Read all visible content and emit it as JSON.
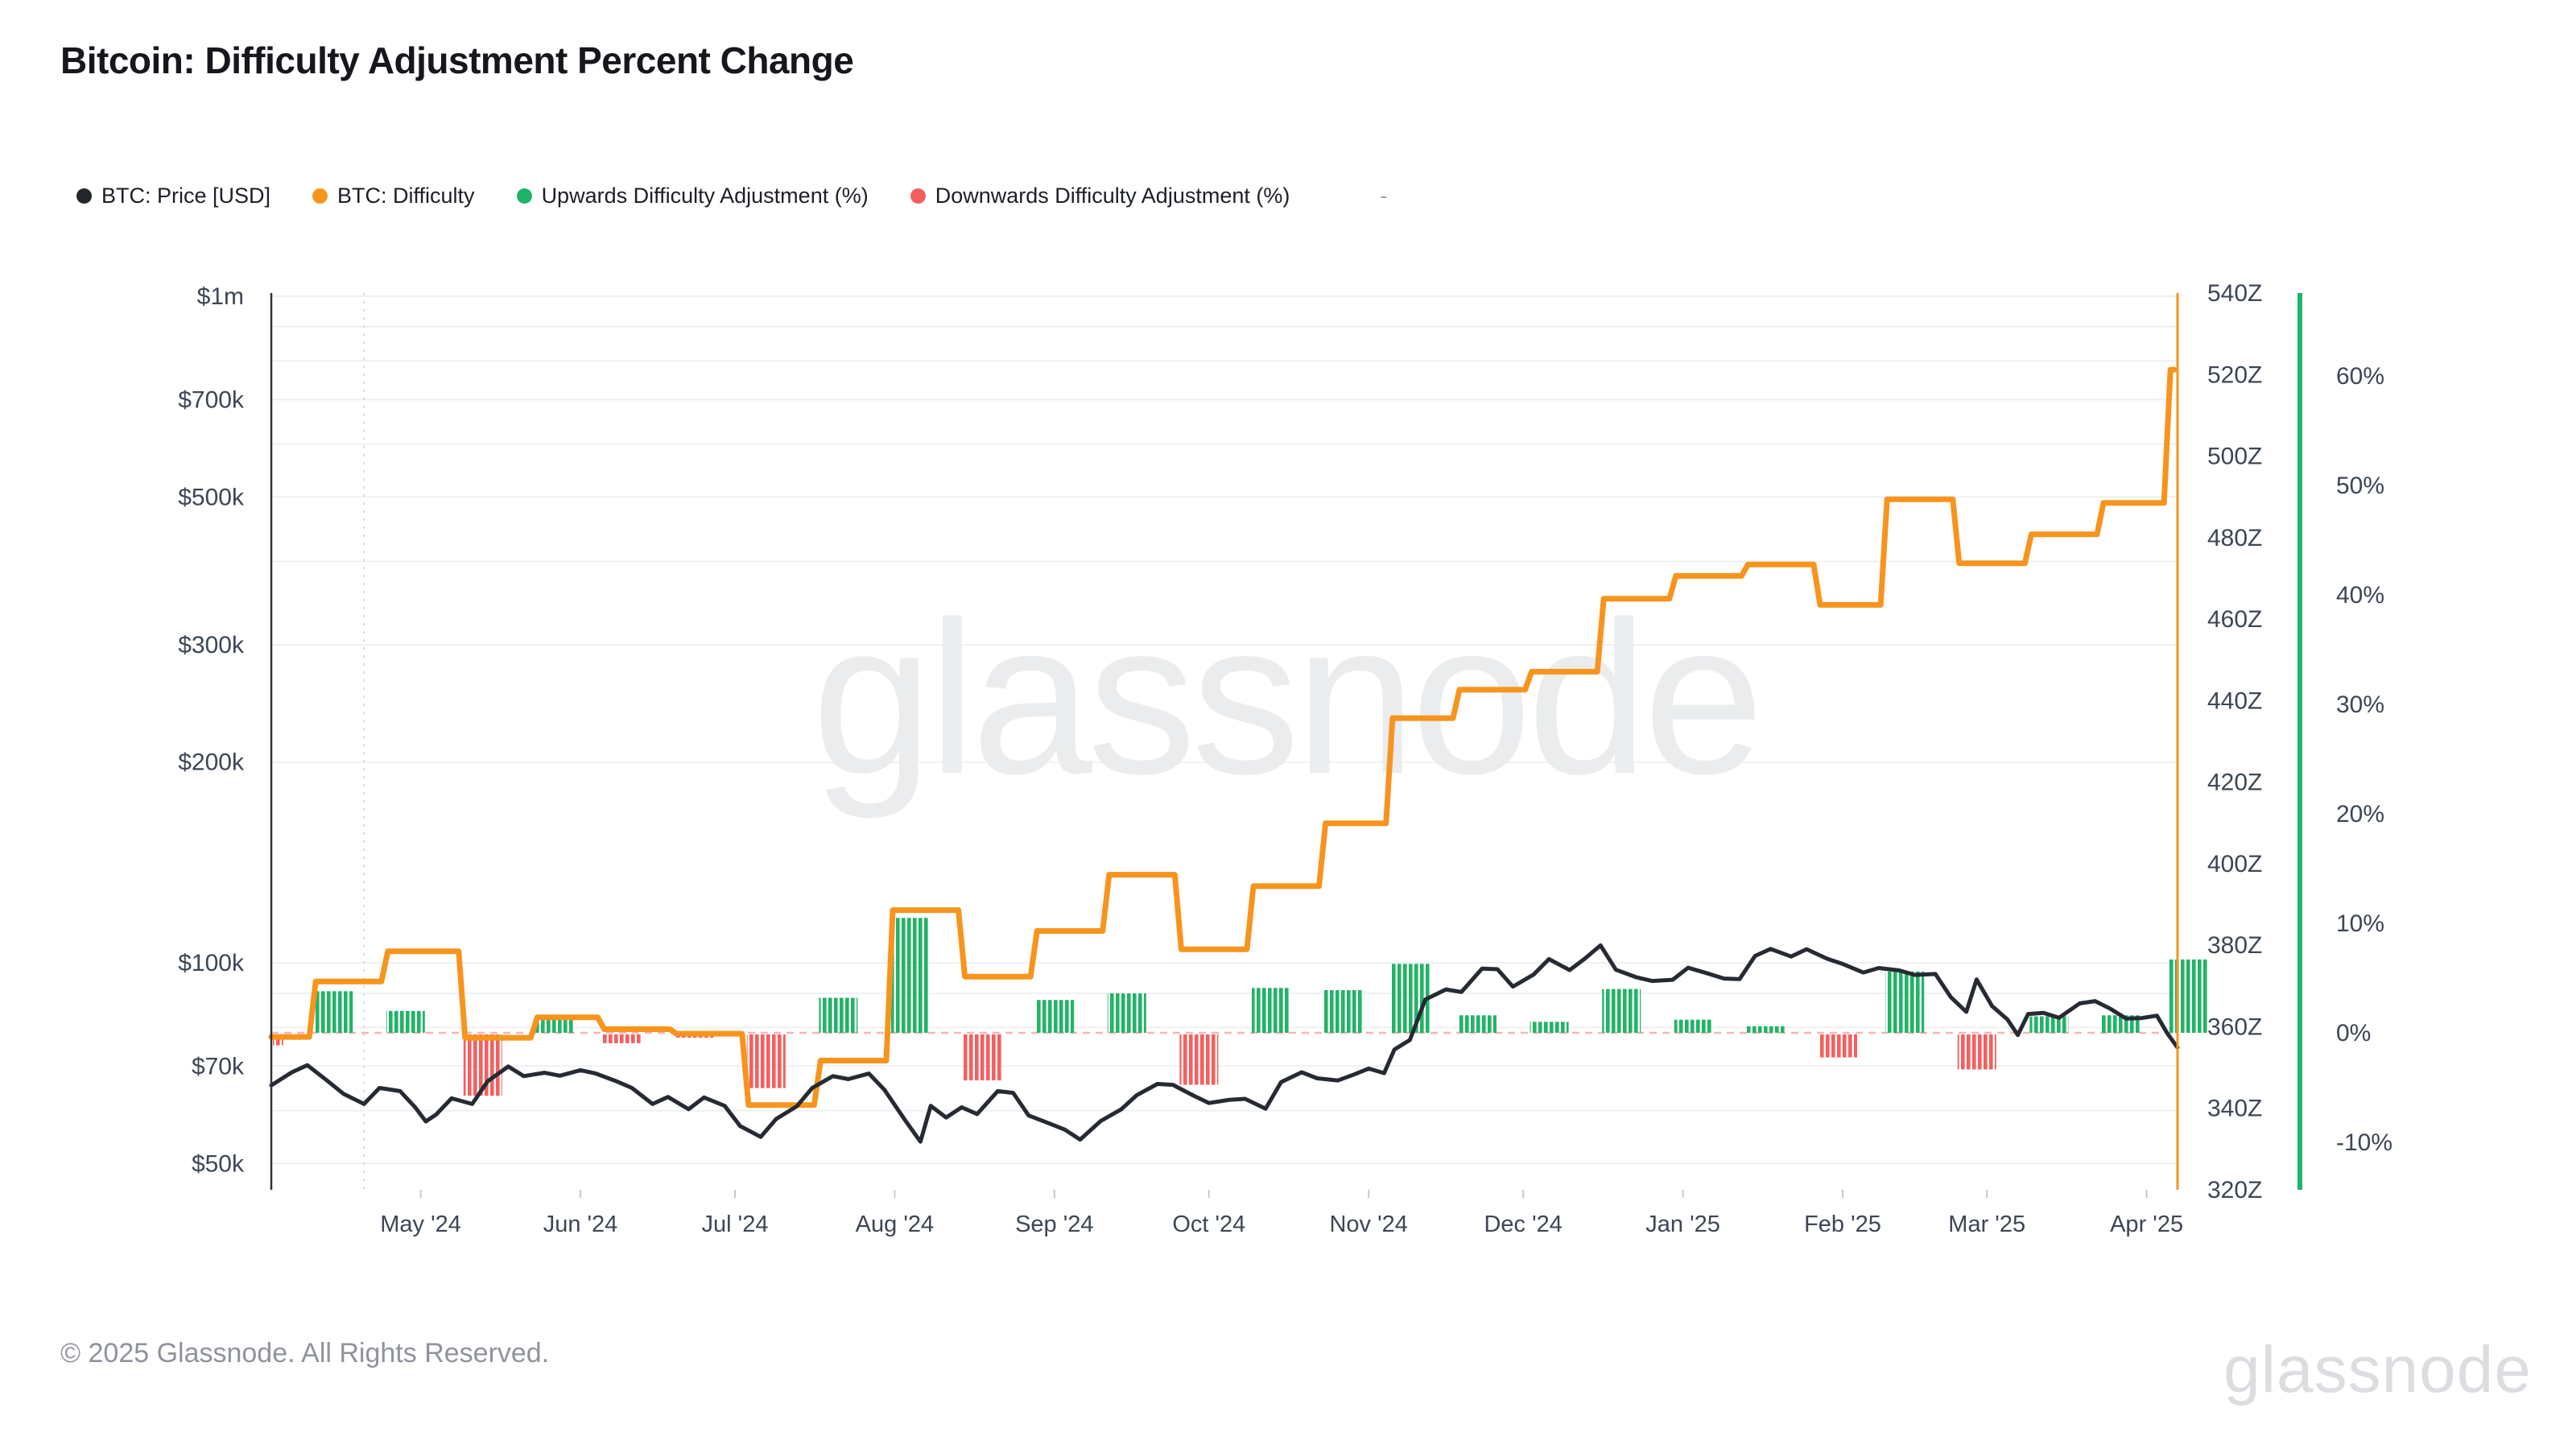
{
  "title": "Bitcoin: Difficulty Adjustment Percent Change",
  "legend": {
    "items": [
      {
        "label": "BTC: Price [USD]",
        "color": "#23262d"
      },
      {
        "label": "BTC: Difficulty",
        "color": "#f7941e"
      },
      {
        "label": "Upwards Difficulty Adjustment (%)",
        "color": "#1fb269"
      },
      {
        "label": "Downwards Difficulty Adjustment (%)",
        "color": "#f55f5f"
      }
    ],
    "trailing_dash": "-"
  },
  "watermark": "glassnode",
  "footer": {
    "copyright": "© 2025 Glassnode. All Rights Reserved.",
    "brand": "glassnode"
  },
  "colors": {
    "price_line": "#262a32",
    "difficulty_line": "#f7941e",
    "up_bar": "#21b467",
    "down_bar": "#f55f5f",
    "zero_line": "#f6b6b2",
    "grid": "#eef0f3",
    "axis_text": "#3d4654",
    "left_axis_line": "#2c323d",
    "pct_axis_line": "#1db56a",
    "month_tick": "#c6cad2",
    "halving_line": "#d8dadf",
    "watermark": "#ebecee"
  },
  "chart_data": {
    "type": "composite",
    "description": "BTC price (log, left axis) with difficulty step line (right Z axis) and hatched difficulty-adjustment percent bars (far-right % axis). X range ~Apr 2024 to ~Apr 2025, day index 0-370.",
    "x_axis": {
      "days_total": 370,
      "month_ticks": [
        {
          "day": 29,
          "label": "May '24"
        },
        {
          "day": 60,
          "label": "Jun '24"
        },
        {
          "day": 90,
          "label": "Jul '24"
        },
        {
          "day": 121,
          "label": "Aug '24"
        },
        {
          "day": 152,
          "label": "Sep '24"
        },
        {
          "day": 182,
          "label": "Oct '24"
        },
        {
          "day": 213,
          "label": "Nov '24"
        },
        {
          "day": 243,
          "label": "Dec '24"
        },
        {
          "day": 274,
          "label": "Jan '25"
        },
        {
          "day": 305,
          "label": "Feb '25"
        },
        {
          "day": 333,
          "label": "Mar '25"
        },
        {
          "day": 364,
          "label": "Apr '25"
        }
      ],
      "halving_marker_day": 18
    },
    "price_axis": {
      "side": "left",
      "scale": "log",
      "labels": [
        [
          1000,
          "$1m"
        ],
        [
          700,
          "$700k"
        ],
        [
          500,
          "$500k"
        ],
        [
          300,
          "$300k"
        ],
        [
          200,
          "$200k"
        ],
        [
          100,
          "$100k"
        ],
        [
          70,
          "$70k"
        ],
        [
          50,
          "$50k"
        ]
      ],
      "grid_values": [
        1000,
        900,
        800,
        700,
        600,
        500,
        400,
        300,
        200,
        100,
        90,
        80,
        70,
        60,
        50
      ]
    },
    "difficulty_axis": {
      "side": "right",
      "unit": "Z",
      "min": 320,
      "max": 540,
      "labels": [
        [
          540,
          "540Z"
        ],
        [
          520,
          "520Z"
        ],
        [
          500,
          "500Z"
        ],
        [
          480,
          "480Z"
        ],
        [
          460,
          "460Z"
        ],
        [
          440,
          "440Z"
        ],
        [
          420,
          "420Z"
        ],
        [
          400,
          "400Z"
        ],
        [
          380,
          "380Z"
        ],
        [
          360,
          "360Z"
        ],
        [
          340,
          "340Z"
        ],
        [
          320,
          "320Z"
        ]
      ]
    },
    "percent_axis": {
      "side": "far-right",
      "labels": [
        [
          60,
          "60%"
        ],
        [
          50,
          "50%"
        ],
        [
          40,
          "40%"
        ],
        [
          30,
          "30%"
        ],
        [
          20,
          "20%"
        ],
        [
          10,
          "10%"
        ],
        [
          0,
          "0%"
        ],
        [
          -10,
          "-10%"
        ]
      ]
    },
    "series": [
      {
        "name": "BTC: Price [USD]",
        "type": "line",
        "axis": "price",
        "points_day_priceK": [
          [
            0,
            65.5
          ],
          [
            4,
            68.5
          ],
          [
            7,
            70.2
          ],
          [
            11,
            66.4
          ],
          [
            14,
            63.6
          ],
          [
            18,
            61.4
          ],
          [
            21,
            64.9
          ],
          [
            25,
            64.2
          ],
          [
            28,
            60.6
          ],
          [
            30,
            57.8
          ],
          [
            32,
            59.2
          ],
          [
            35,
            62.6
          ],
          [
            39,
            61.4
          ],
          [
            42,
            66.4
          ],
          [
            46,
            69.9
          ],
          [
            49,
            67.6
          ],
          [
            53,
            68.4
          ],
          [
            56,
            67.7
          ],
          [
            60,
            69.0
          ],
          [
            63,
            68.2
          ],
          [
            67,
            66.4
          ],
          [
            70,
            64.9
          ],
          [
            74,
            61.4
          ],
          [
            77,
            62.9
          ],
          [
            81,
            60.3
          ],
          [
            84,
            62.8
          ],
          [
            88,
            61.0
          ],
          [
            91,
            56.9
          ],
          [
            95,
            54.8
          ],
          [
            98,
            58.3
          ],
          [
            102,
            60.9
          ],
          [
            105,
            64.9
          ],
          [
            109,
            67.6
          ],
          [
            112,
            66.9
          ],
          [
            116,
            68.2
          ],
          [
            119,
            64.5
          ],
          [
            123,
            58.1
          ],
          [
            126,
            53.9
          ],
          [
            128,
            61.0
          ],
          [
            131,
            58.6
          ],
          [
            134,
            60.7
          ],
          [
            137,
            59.3
          ],
          [
            141,
            64.2
          ],
          [
            144,
            63.8
          ],
          [
            147,
            59.0
          ],
          [
            151,
            57.4
          ],
          [
            154,
            56.2
          ],
          [
            157,
            54.3
          ],
          [
            161,
            57.9
          ],
          [
            165,
            60.3
          ],
          [
            168,
            63.3
          ],
          [
            172,
            65.8
          ],
          [
            175,
            65.6
          ],
          [
            179,
            63.2
          ],
          [
            182,
            61.6
          ],
          [
            186,
            62.3
          ],
          [
            189,
            62.5
          ],
          [
            193,
            60.4
          ],
          [
            196,
            66.2
          ],
          [
            200,
            68.5
          ],
          [
            203,
            67.1
          ],
          [
            207,
            66.6
          ],
          [
            210,
            67.9
          ],
          [
            213,
            69.4
          ],
          [
            216,
            68.3
          ],
          [
            218,
            74.1
          ],
          [
            221,
            76.6
          ],
          [
            224,
            88.1
          ],
          [
            228,
            91.2
          ],
          [
            231,
            90.4
          ],
          [
            235,
            98.0
          ],
          [
            238,
            97.8
          ],
          [
            241,
            92.1
          ],
          [
            245,
            96.0
          ],
          [
            248,
            101.3
          ],
          [
            252,
            97.5
          ],
          [
            255,
            101.5
          ],
          [
            258,
            106.2
          ],
          [
            261,
            97.6
          ],
          [
            265,
            95.1
          ],
          [
            268,
            93.9
          ],
          [
            272,
            94.3
          ],
          [
            275,
            98.3
          ],
          [
            278,
            96.8
          ],
          [
            282,
            94.7
          ],
          [
            285,
            94.5
          ],
          [
            288,
            102.4
          ],
          [
            291,
            104.9
          ],
          [
            295,
            102.2
          ],
          [
            298,
            104.8
          ],
          [
            302,
            101.4
          ],
          [
            305,
            99.6
          ],
          [
            309,
            96.7
          ],
          [
            312,
            98.2
          ],
          [
            316,
            97.4
          ],
          [
            319,
            95.9
          ],
          [
            323,
            96.2
          ],
          [
            326,
            88.8
          ],
          [
            329,
            84.4
          ],
          [
            331,
            94.4
          ],
          [
            334,
            86.1
          ],
          [
            337,
            82.2
          ],
          [
            339,
            77.9
          ],
          [
            341,
            83.8
          ],
          [
            344,
            84.1
          ],
          [
            347,
            82.7
          ],
          [
            351,
            86.9
          ],
          [
            354,
            87.6
          ],
          [
            357,
            85.3
          ],
          [
            360,
            82.5
          ],
          [
            363,
            82.6
          ],
          [
            366,
            83.3
          ],
          [
            368,
            78.4
          ],
          [
            370,
            74.6
          ]
        ]
      },
      {
        "name": "BTC: Difficulty",
        "type": "step",
        "axis": "difficulty",
        "start_level_z": 357.5,
        "epochs_day_pct_z": [
          [
            8,
            3.8,
            371.1
          ],
          [
            22,
            2.0,
            378.5
          ],
          [
            37,
            -5.6,
            357.3
          ],
          [
            51,
            1.4,
            362.3
          ],
          [
            64,
            -0.8,
            359.4
          ],
          [
            78,
            -0.3,
            358.3
          ],
          [
            92,
            -4.9,
            340.8
          ],
          [
            106,
            3.2,
            351.7
          ],
          [
            120,
            10.5,
            388.6
          ],
          [
            134,
            -4.2,
            372.3
          ],
          [
            148,
            3.0,
            383.5
          ],
          [
            162,
            3.6,
            397.3
          ],
          [
            176,
            -4.6,
            379.0
          ],
          [
            190,
            4.1,
            394.5
          ],
          [
            204,
            3.9,
            409.9
          ],
          [
            217,
            6.3,
            435.7
          ],
          [
            230,
            1.6,
            442.7
          ],
          [
            244,
            1.0,
            447.1
          ],
          [
            258,
            4.0,
            465.0
          ],
          [
            272,
            1.2,
            470.6
          ],
          [
            286,
            0.6,
            473.4
          ],
          [
            300,
            -2.1,
            463.5
          ],
          [
            313,
            5.6,
            489.4
          ],
          [
            327,
            -3.2,
            473.7
          ],
          [
            341,
            1.5,
            480.8
          ],
          [
            355,
            1.6,
            488.5
          ],
          [
            368,
            6.7,
            521.2
          ]
        ]
      },
      {
        "name": "Difficulty Adjustment (%)",
        "type": "hatched-bar",
        "axis": "percent",
        "note": "green above 0 for upward adjustments, red below 0 for downward; heights equal epoch pct",
        "initial_partial_bar": {
          "day": 0,
          "pct": -1.0,
          "width_days": 2
        },
        "bar_width_days": 7.5
      }
    ]
  }
}
